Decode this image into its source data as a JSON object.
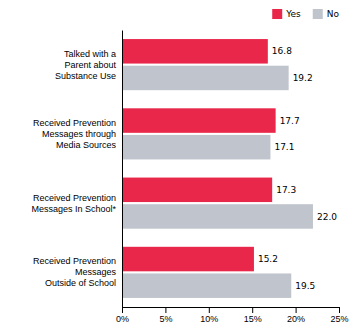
{
  "chart_data": {
    "type": "bar",
    "orientation": "horizontal",
    "categories": [
      "Talked with a\nParent about\nSubstance Use",
      "Received Prevention\nMessages through\nMedia Sources",
      "Received Prevention\nMessages In School*",
      "Received Prevention\nMessages\nOutside of School"
    ],
    "series": [
      {
        "name": "Yes",
        "color": "#e8274b",
        "values": [
          16.8,
          17.7,
          17.3,
          15.2
        ],
        "value_labels": [
          "16.8",
          "17.7",
          "17.3",
          "15.2"
        ]
      },
      {
        "name": "No",
        "color": "#c0c4cc",
        "values": [
          19.2,
          17.1,
          22.0,
          19.5
        ],
        "value_labels": [
          "19.2",
          "17.1",
          "22.0",
          "19.5"
        ]
      }
    ],
    "xlim": [
      0,
      25
    ],
    "xticks": [
      {
        "value": 0,
        "label": "0%"
      },
      {
        "value": 5,
        "label": "5%"
      },
      {
        "value": 10,
        "label": "10%"
      },
      {
        "value": 15,
        "label": "15%"
      },
      {
        "value": 20,
        "label": "20%"
      },
      {
        "value": 25,
        "label": "25%"
      }
    ],
    "data_labels": true,
    "grid": false,
    "legend": "upper right"
  }
}
